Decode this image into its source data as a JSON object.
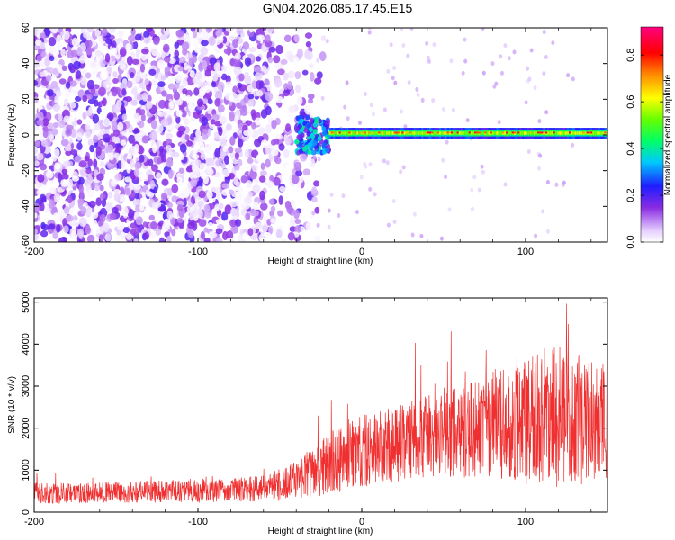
{
  "title": "GN04.2026.085.17.45.E15",
  "chart_data": [
    {
      "type": "heatmap",
      "xlabel": "Height of straight line (km)",
      "ylabel": "Frequency (Hz)",
      "xlim": [
        -200,
        150
      ],
      "ylim": [
        -60,
        60
      ],
      "x_ticks": [
        -200,
        -100,
        0,
        100
      ],
      "x_tick_labels": [
        "-200",
        "-100",
        "0",
        "100"
      ],
      "y_ticks": [
        -60,
        -40,
        -20,
        0,
        20,
        40,
        60
      ],
      "y_tick_labels": [
        "-60",
        "-40",
        "-20",
        "0",
        "20",
        "40",
        "60"
      ],
      "colorbar": {
        "label": "Normalized spectral amplitude",
        "range": [
          0,
          0.92
        ],
        "ticks": [
          0,
          0.2,
          0.4,
          0.6,
          0.8
        ],
        "tick_labels": [
          "0.0",
          "0.2",
          "0.4",
          "0.6",
          "0.8"
        ],
        "colormap": "rainbow (white-violet-blue-cyan-green-yellow-red-magenta)"
      },
      "features": [
        {
          "name": "broadband noise",
          "x_range": [
            -200,
            -40
          ],
          "freq_range": [
            -60,
            60
          ],
          "amplitude": 0.1
        },
        {
          "name": "transition",
          "x_range": [
            -40,
            -20
          ],
          "freq_range": [
            -10,
            10
          ],
          "amplitude": 0.3
        },
        {
          "name": "narrowband signal",
          "x_range": [
            -20,
            150
          ],
          "freq_center": 1,
          "freq_width": 6,
          "amplitude": 0.85
        }
      ]
    },
    {
      "type": "line",
      "xlabel": "Height of straight line (km)",
      "ylabel": "SNR (10 * v/v)",
      "xlim": [
        -200,
        150
      ],
      "ylim": [
        0,
        5100
      ],
      "x_ticks": [
        -200,
        -100,
        0,
        100
      ],
      "x_tick_labels": [
        "-200",
        "-100",
        "0",
        "100"
      ],
      "y_ticks": [
        0,
        1000,
        2000,
        3000,
        4000,
        5000
      ],
      "y_tick_labels": [
        "0",
        "1000",
        "2000",
        "3000",
        "4000",
        "5000"
      ],
      "series": [
        {
          "name": "SNR",
          "color": "#f03030",
          "x": [
            -200,
            -180,
            -160,
            -140,
            -120,
            -100,
            -80,
            -60,
            -50,
            -40,
            -30,
            -20,
            -10,
            0,
            10,
            20,
            30,
            40,
            50,
            60,
            70,
            80,
            90,
            100,
            110,
            120,
            130,
            140,
            150
          ],
          "mean": [
            450,
            450,
            470,
            480,
            500,
            500,
            520,
            560,
            650,
            780,
            950,
            1150,
            1300,
            1450,
            1500,
            1600,
            1750,
            1800,
            1850,
            1900,
            2000,
            2050,
            2100,
            2150,
            2250,
            2300,
            2200,
            2100,
            2200
          ],
          "spread": [
            250,
            250,
            250,
            260,
            270,
            270,
            280,
            320,
            380,
            450,
            600,
            750,
            800,
            850,
            900,
            900,
            950,
            1000,
            1000,
            1100,
            1200,
            1300,
            1400,
            1500,
            1700,
            1700,
            1600,
            1500,
            1500
          ]
        }
      ]
    }
  ]
}
